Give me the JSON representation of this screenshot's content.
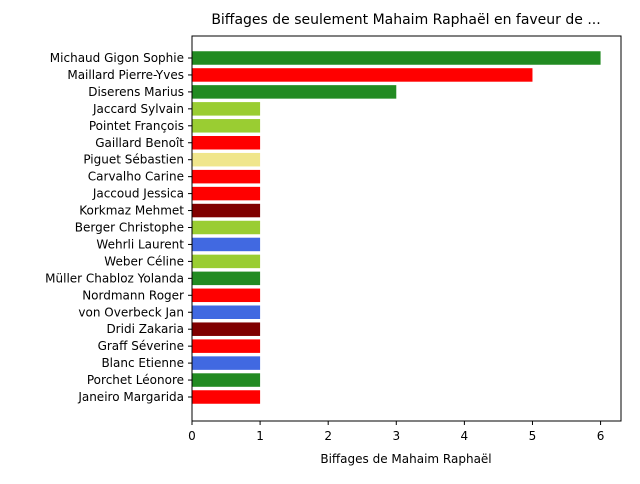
{
  "chart_data": {
    "type": "bar",
    "orientation": "horizontal",
    "title": "Biffages de seulement Mahaim Raphaël en faveur de ...",
    "xlabel": "Biffages de Mahaim Raphaël",
    "ylabel": "",
    "xlim": [
      0,
      6.3
    ],
    "xticks": [
      0,
      1,
      2,
      3,
      4,
      5,
      6
    ],
    "grid": false,
    "categories": [
      "Michaud Gigon Sophie",
      "Maillard Pierre-Yves",
      "Diserens Marius",
      "Jaccard Sylvain",
      "Pointet François",
      "Gaillard Benoît",
      "Piguet Sébastien",
      "Carvalho Carine",
      "Jaccoud Jessica",
      "Korkmaz Mehmet",
      "Berger Christophe",
      "Wehrli Laurent",
      "Weber Céline",
      "Müller Chabloz Yolanda",
      "Nordmann Roger",
      "von Overbeck Jan",
      "Dridi Zakaria",
      "Graff Séverine",
      "Blanc Etienne",
      "Porchet Léonore",
      "Janeiro Margarida"
    ],
    "values": [
      6,
      5,
      3,
      1,
      1,
      1,
      1,
      1,
      1,
      1,
      1,
      1,
      1,
      1,
      1,
      1,
      1,
      1,
      1,
      1,
      1
    ],
    "colors": [
      "#228b22",
      "#ff0000",
      "#228b22",
      "#9acd32",
      "#9acd32",
      "#ff0000",
      "#f0e68c",
      "#ff0000",
      "#ff0000",
      "#800000",
      "#9acd32",
      "#4169e1",
      "#9acd32",
      "#228b22",
      "#ff0000",
      "#4169e1",
      "#800000",
      "#ff0000",
      "#4169e1",
      "#228b22",
      "#ff0000"
    ]
  }
}
